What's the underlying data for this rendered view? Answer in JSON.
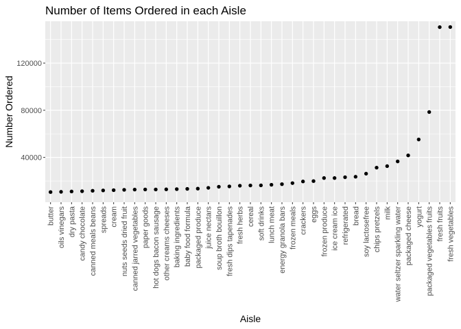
{
  "chart_data": {
    "type": "scatter",
    "title": "Number of Items Ordered in each Aisle",
    "xlabel": "Aisle",
    "ylabel": "Number Ordered",
    "ylim": [
      2000,
      155500
    ],
    "yticks": [
      40000,
      80000,
      120000
    ],
    "ytick_labels": [
      "40000",
      "80000",
      "120000"
    ],
    "grid": true,
    "colors": {
      "panel": "#ebebeb",
      "grid": "#ffffff",
      "point": "#000000"
    },
    "categories": [
      "butter",
      "oils vinegars",
      "dry pasta",
      "candy chocolate",
      "canned meals beans",
      "spreads",
      "cream",
      "nuts seeds dried fruit",
      "canned jarred vegetables",
      "paper goods",
      "hot dogs bacon sausage",
      "other creams cheeses",
      "baking ingredients",
      "baby food formula",
      "packaged produce",
      "juice nectars",
      "soup broth bouillon",
      "fresh dips tapenades",
      "fresh herbs",
      "cereal",
      "soft drinks",
      "lunch meat",
      "energy granola bars",
      "frozen meals",
      "crackers",
      "eggs",
      "frozen produce",
      "ice cream ice",
      "refrigerated",
      "bread",
      "soy lactosefree",
      "chips pretzels",
      "milk",
      "water seltzer sparkling water",
      "packaged cheese",
      "yogurt",
      "packaged vegetables fruits",
      "fresh fruits",
      "fresh vegetables"
    ],
    "values": [
      10600,
      10800,
      11100,
      11300,
      11700,
      12000,
      12200,
      12500,
      12700,
      12800,
      12800,
      12900,
      13100,
      13300,
      13500,
      14200,
      15100,
      15400,
      16000,
      16200,
      16300,
      16800,
      17300,
      18200,
      19600,
      19900,
      22500,
      22500,
      23200,
      23600,
      26200,
      31300,
      32600,
      36600,
      41700,
      55200,
      78500,
      150500,
      150600
    ]
  }
}
